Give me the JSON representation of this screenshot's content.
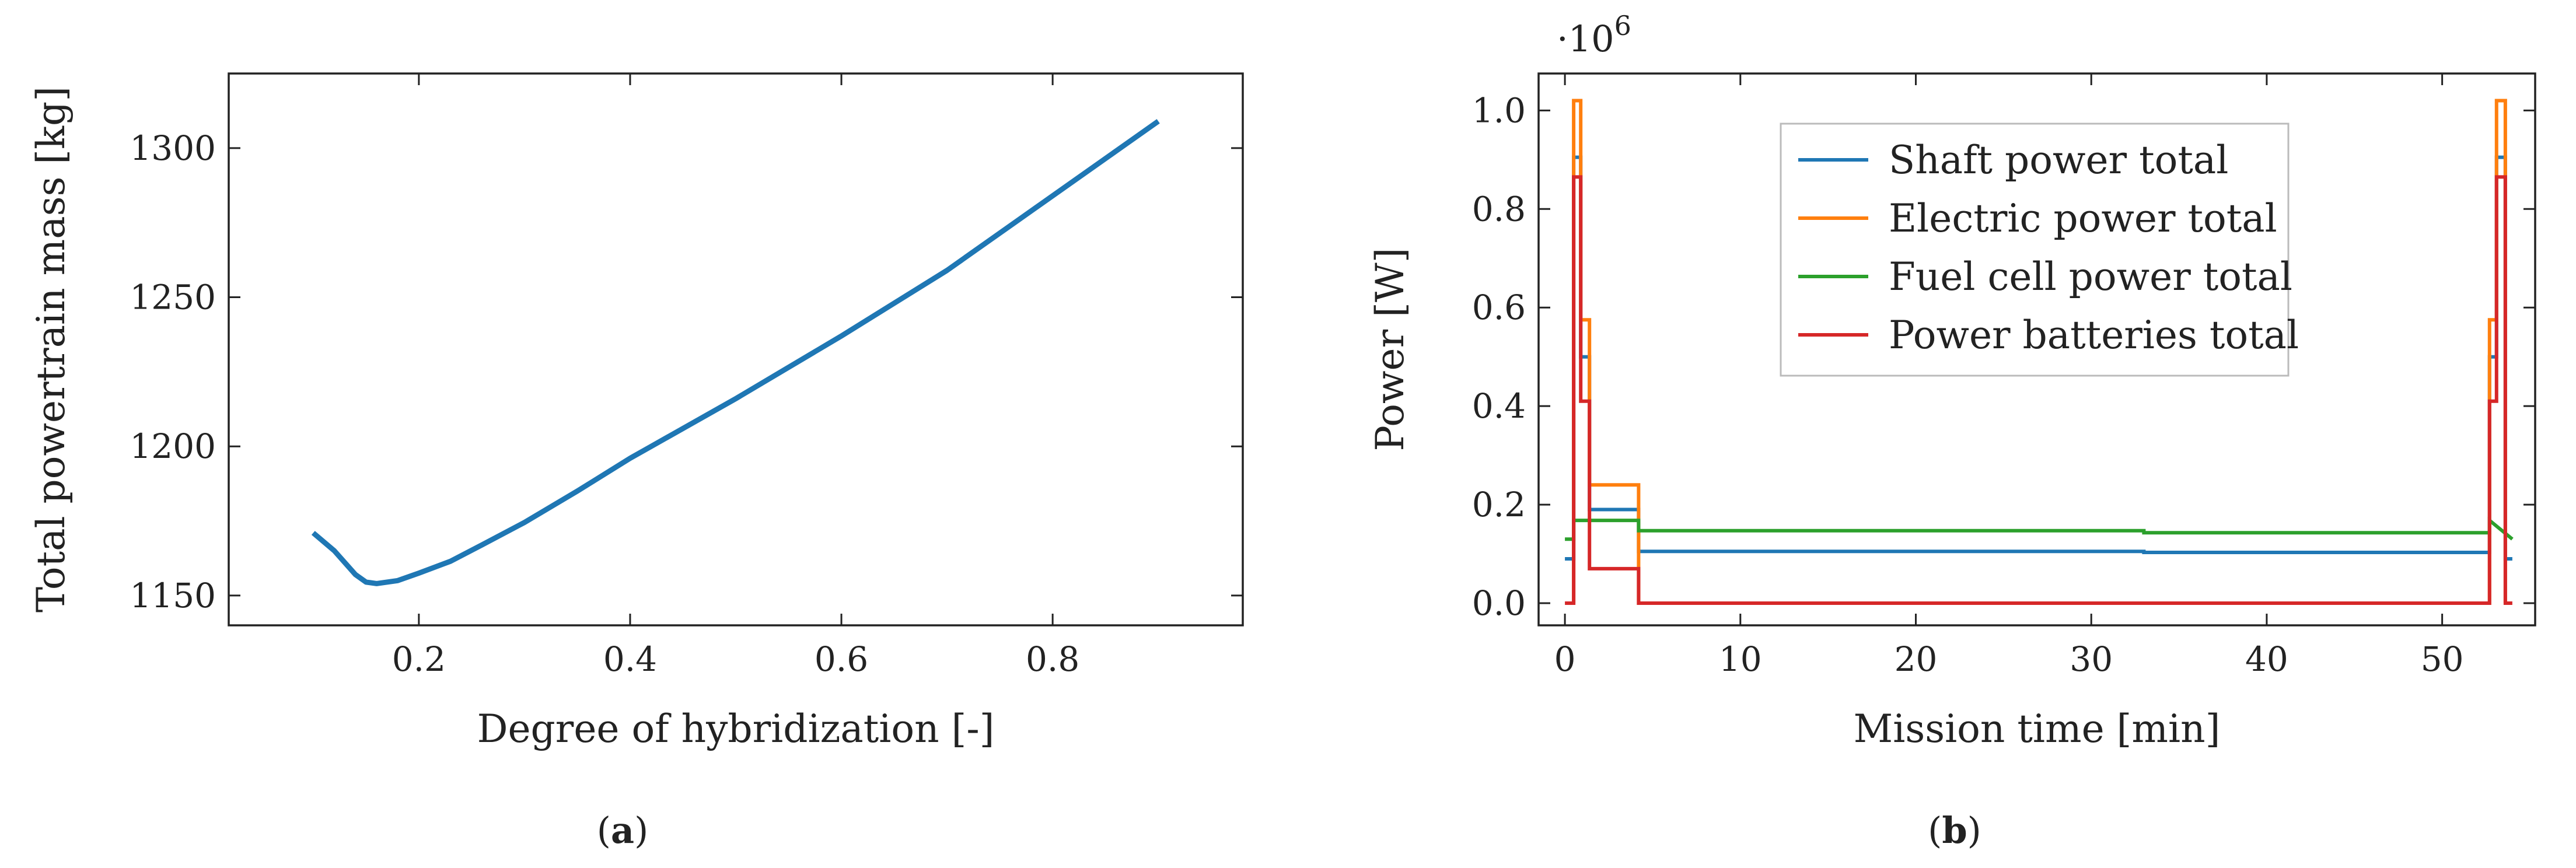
{
  "figure": {
    "caption_a": {
      "open": "(",
      "letter": "a",
      "close": ")"
    },
    "caption_b": {
      "open": "(",
      "letter": "b",
      "close": ")"
    }
  },
  "chart_data": [
    {
      "id": "a",
      "type": "line",
      "title": "",
      "xlabel": "Degree of hybridization [-]",
      "ylabel": "Total powertrain mass [kg]",
      "xlim": [
        0.02,
        0.98
      ],
      "ylim": [
        1140,
        1325
      ],
      "xticks": [
        0.2,
        0.4,
        0.6,
        0.8
      ],
      "xtick_labels": [
        "0.2",
        "0.4",
        "0.6",
        "0.8"
      ],
      "yticks": [
        1150,
        1200,
        1250,
        1300
      ],
      "ytick_labels": [
        "1150",
        "1200",
        "1250",
        "1300"
      ],
      "grid": false,
      "series": [
        {
          "name": "Total powertrain mass",
          "color": "#1f77b4",
          "x": [
            0.1,
            0.12,
            0.14,
            0.15,
            0.16,
            0.18,
            0.2,
            0.23,
            0.26,
            0.3,
            0.35,
            0.4,
            0.5,
            0.6,
            0.7,
            0.8,
            0.9
          ],
          "y": [
            1171,
            1165,
            1157,
            1154.5,
            1154,
            1155,
            1157.5,
            1161.5,
            1167,
            1174.5,
            1185,
            1196,
            1216,
            1237,
            1259,
            1284,
            1309
          ]
        }
      ]
    },
    {
      "id": "b",
      "type": "line",
      "title": "",
      "xlabel": "Mission time [min]",
      "ylabel": "Power [W]",
      "y_multiplier_base": "·10",
      "y_multiplier_exp": "6",
      "xlim": [
        -1.5,
        55.3
      ],
      "ylim": [
        -0.045,
        1.075
      ],
      "xticks": [
        0,
        10,
        20,
        30,
        40,
        50
      ],
      "xtick_labels": [
        "0",
        "10",
        "20",
        "30",
        "40",
        "50"
      ],
      "yticks": [
        0,
        0.2,
        0.4,
        0.6,
        0.8,
        1.0
      ],
      "ytick_labels": [
        "0.0",
        "0.2",
        "0.4",
        "0.6",
        "0.8",
        "1.0"
      ],
      "grid": false,
      "legend": "top-center",
      "series": [
        {
          "name": "Shaft power total",
          "color": "#1f77b4",
          "x": [
            0,
            0.5,
            0.5,
            0.9,
            0.9,
            1.4,
            1.4,
            4.2,
            4.2,
            33,
            33,
            52.7,
            52.7,
            53.1,
            53.1,
            53.6,
            53.6,
            54
          ],
          "y": [
            0.09,
            0.09,
            0.905,
            0.905,
            0.5,
            0.5,
            0.19,
            0.19,
            0.105,
            0.105,
            0.103,
            0.103,
            0.5,
            0.5,
            0.905,
            0.905,
            0.09,
            0.09
          ]
        },
        {
          "name": "Electric power total",
          "color": "#ff7f0e",
          "x": [
            0.5,
            0.5,
            0.9,
            0.9,
            1.4,
            1.4,
            4.2,
            4.2,
            52.7,
            52.7,
            53.1,
            53.1,
            53.6,
            53.6
          ],
          "y": [
            0,
            1.02,
            1.02,
            0.575,
            0.575,
            0.24,
            0.24,
            0,
            0,
            0.575,
            0.575,
            1.02,
            1.02,
            0
          ]
        },
        {
          "name": "Fuel cell power total",
          "color": "#2ca02c",
          "x": [
            0,
            0.5,
            0.5,
            4.2,
            4.2,
            33,
            33,
            52.7,
            52.7,
            54
          ],
          "y": [
            0.13,
            0.13,
            0.168,
            0.168,
            0.147,
            0.147,
            0.143,
            0.143,
            0.168,
            0.13
          ]
        },
        {
          "name": "Power batteries total",
          "color": "#d62728",
          "x": [
            0,
            0.5,
            0.5,
            0.9,
            0.9,
            1.4,
            1.4,
            4.2,
            4.2,
            52.7,
            52.7,
            53.1,
            53.1,
            53.6,
            53.6,
            54
          ],
          "y": [
            0,
            0,
            0.865,
            0.865,
            0.41,
            0.41,
            0.07,
            0.07,
            0,
            0,
            0.41,
            0.41,
            0.865,
            0.865,
            0,
            0
          ]
        }
      ]
    }
  ]
}
